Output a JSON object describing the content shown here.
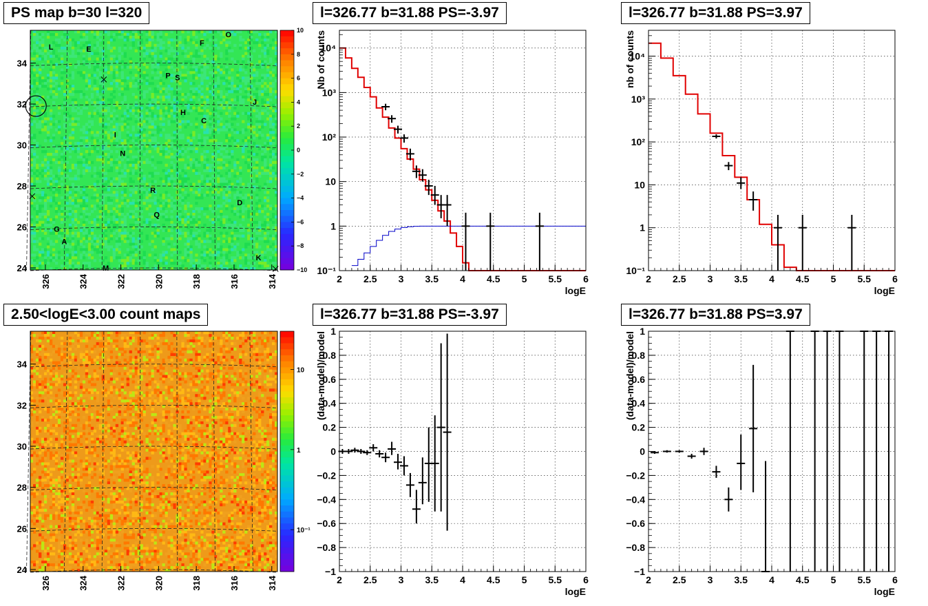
{
  "chart_data": [
    {
      "type": "heatmap",
      "title": "PS map b=30 l=320",
      "xticks": [
        "326",
        "324",
        "322",
        "320",
        "318",
        "316",
        "314"
      ],
      "xrange": [
        326.8,
        313.7
      ],
      "yticks": [
        "24",
        "26",
        "28",
        "30",
        "32",
        "34"
      ],
      "yrange": [
        23.9,
        35.6
      ],
      "colorbar_ticks": [
        "10",
        "8",
        "6",
        "4",
        "2",
        "0",
        "−2",
        "−4",
        "−6",
        "−8",
        "−10"
      ],
      "colorbar_range": [
        -10,
        10
      ],
      "colorbar_scale": "linear",
      "colormap": "rainbow",
      "base_color": "#33e655",
      "grid": "dashed",
      "markers": [
        {
          "label": "L",
          "l": 325.7,
          "b": 34.8
        },
        {
          "label": "E",
          "l": 323.7,
          "b": 34.7
        },
        {
          "label": "F",
          "l": 317.7,
          "b": 35.0
        },
        {
          "label": "O",
          "l": 316.3,
          "b": 35.4
        },
        {
          "label": "P",
          "l": 319.5,
          "b": 33.4
        },
        {
          "label": "S",
          "l": 319.0,
          "b": 33.3
        },
        {
          "label": "J",
          "l": 314.9,
          "b": 32.1
        },
        {
          "label": "H",
          "l": 318.7,
          "b": 31.6
        },
        {
          "label": "C",
          "l": 317.6,
          "b": 31.2
        },
        {
          "label": "I",
          "l": 322.3,
          "b": 30.5
        },
        {
          "label": "N",
          "l": 321.9,
          "b": 29.6
        },
        {
          "label": "R",
          "l": 320.3,
          "b": 27.8
        },
        {
          "label": "D",
          "l": 315.7,
          "b": 27.2
        },
        {
          "label": "Q",
          "l": 320.1,
          "b": 26.6
        },
        {
          "label": "G",
          "l": 325.4,
          "b": 25.9
        },
        {
          "label": "A",
          "l": 325.0,
          "b": 25.3
        },
        {
          "label": "K",
          "l": 314.7,
          "b": 24.5
        },
        {
          "label": "M",
          "l": 322.8,
          "b": 24.0
        }
      ],
      "crosses": [
        {
          "l": 322.9,
          "b": 33.2
        },
        {
          "l": 326.7,
          "b": 27.5
        },
        {
          "l": 313.8,
          "b": 23.95
        }
      ],
      "circle": {
        "l": 326.5,
        "b": 31.9
      }
    },
    {
      "type": "line",
      "title": "l=326.77 b=31.88 PS=-3.97",
      "xlabel": "logE",
      "ylabel": "Nb of counts",
      "xlim": [
        2,
        6
      ],
      "ylim": [
        0.1,
        25000
      ],
      "yscale": "log",
      "grid": true,
      "xticks": [
        2,
        2.5,
        3,
        3.5,
        4,
        4.5,
        5,
        5.5,
        6
      ],
      "yticks": [
        {
          "v": 0.1,
          "t": "10⁻¹"
        },
        {
          "v": 1,
          "t": "1"
        },
        {
          "v": 10,
          "t": "10"
        },
        {
          "v": 100,
          "t": "10²"
        },
        {
          "v": 1000,
          "t": "10³"
        },
        {
          "v": 10000,
          "t": "10⁴"
        }
      ],
      "series": [
        {
          "color": "#e00000",
          "kind": "step",
          "edges": [
            2,
            2.1,
            2.2,
            2.3,
            2.4,
            2.5,
            2.6,
            2.7,
            2.8,
            2.9,
            3.0,
            3.1,
            3.2,
            3.3,
            3.4,
            3.5,
            3.6,
            3.7,
            3.8,
            3.9,
            4.0,
            4.1,
            4.2,
            6.0
          ],
          "values": [
            10000,
            6000,
            3500,
            2200,
            1300,
            800,
            450,
            280,
            160,
            95,
            55,
            32,
            19,
            11,
            6.5,
            3.8,
            2.2,
            1.3,
            0.7,
            0.35,
            0.15,
            0.07,
            0.1
          ]
        },
        {
          "color": "#0000c8",
          "kind": "step",
          "edges": [
            2.2,
            2.3,
            2.4,
            2.5,
            2.6,
            2.7,
            2.8,
            2.9,
            3.0,
            3.1,
            3.2,
            3.3,
            3.4,
            3.5,
            6.0
          ],
          "values": [
            0.13,
            0.18,
            0.25,
            0.35,
            0.48,
            0.62,
            0.76,
            0.86,
            0.93,
            0.97,
            0.99,
            1.0,
            1.0,
            1.0
          ]
        },
        {
          "color": "#000000",
          "kind": "points",
          "points": [
            {
              "x": 2.75,
              "y": 480,
              "lo": 400,
              "hi": 560
            },
            {
              "x": 2.85,
              "y": 260,
              "lo": 210,
              "hi": 310
            },
            {
              "x": 2.95,
              "y": 150,
              "lo": 120,
              "hi": 180
            },
            {
              "x": 3.05,
              "y": 95,
              "lo": 75,
              "hi": 115
            },
            {
              "x": 3.15,
              "y": 42,
              "lo": 30,
              "hi": 55
            },
            {
              "x": 3.25,
              "y": 17,
              "lo": 12,
              "hi": 23
            },
            {
              "x": 3.35,
              "y": 14,
              "lo": 10,
              "hi": 19
            },
            {
              "x": 3.45,
              "y": 8,
              "lo": 5,
              "hi": 11
            },
            {
              "x": 3.55,
              "y": 5,
              "lo": 3,
              "hi": 8
            },
            {
              "x": 3.65,
              "y": 3,
              "lo": 1.5,
              "hi": 5
            },
            {
              "x": 3.75,
              "y": 3,
              "lo": 1,
              "hi": 5
            },
            {
              "x": 4.05,
              "y": 1,
              "lo": 0.1,
              "hi": 2
            },
            {
              "x": 4.45,
              "y": 1,
              "lo": 0.1,
              "hi": 2
            },
            {
              "x": 5.25,
              "y": 1,
              "lo": 0.1,
              "hi": 2
            }
          ]
        }
      ]
    },
    {
      "type": "line",
      "title": "l=326.77 b=31.88 PS=3.97",
      "xlabel": "logE",
      "ylabel": "nb of counts",
      "xlim": [
        2,
        6
      ],
      "ylim": [
        0.1,
        40000
      ],
      "yscale": "log",
      "grid": true,
      "xticks": [
        2,
        2.5,
        3,
        3.5,
        4,
        4.5,
        5,
        5.5,
        6
      ],
      "yticks": [
        {
          "v": 0.1,
          "t": "10⁻¹"
        },
        {
          "v": 1,
          "t": "1"
        },
        {
          "v": 10,
          "t": "10"
        },
        {
          "v": 100,
          "t": "10²"
        },
        {
          "v": 1000,
          "t": "10³"
        },
        {
          "v": 10000,
          "t": "10⁴"
        }
      ],
      "series": [
        {
          "color": "#e00000",
          "kind": "step",
          "edges": [
            2,
            2.2,
            2.4,
            2.6,
            2.8,
            3.0,
            3.2,
            3.4,
            3.6,
            3.8,
            4.0,
            4.2,
            4.4,
            6.0
          ],
          "values": [
            20000,
            9000,
            3500,
            1300,
            450,
            160,
            48,
            15,
            4.5,
            1.2,
            0.4,
            0.12,
            0.1
          ]
        },
        {
          "color": "#000000",
          "kind": "points",
          "points": [
            {
              "x": 3.1,
              "y": 135,
              "lo": 120,
              "hi": 150
            },
            {
              "x": 3.3,
              "y": 28,
              "lo": 22,
              "hi": 34
            },
            {
              "x": 3.5,
              "y": 11,
              "lo": 8,
              "hi": 15
            },
            {
              "x": 3.7,
              "y": 4.5,
              "lo": 2.5,
              "hi": 7
            },
            {
              "x": 4.1,
              "y": 1,
              "lo": 0.1,
              "hi": 2
            },
            {
              "x": 4.5,
              "y": 1,
              "lo": 0.1,
              "hi": 2
            },
            {
              "x": 5.3,
              "y": 1,
              "lo": 0.1,
              "hi": 2
            }
          ]
        }
      ]
    },
    {
      "type": "heatmap",
      "title": "2.50<logE<3.00 count maps",
      "xticks": [
        "326",
        "324",
        "322",
        "320",
        "318",
        "316",
        "314"
      ],
      "xrange": [
        326.8,
        313.7
      ],
      "yticks": [
        "24",
        "26",
        "28",
        "30",
        "32",
        "34"
      ],
      "yrange": [
        23.9,
        35.6
      ],
      "colorbar_ticks": [
        "10",
        "1",
        "10⁻¹"
      ],
      "colorbar_range": [
        0.03,
        30
      ],
      "colorbar_scale": "log",
      "colormap": "rainbow",
      "base_color": "#ee9a1a",
      "grid": "dashed"
    },
    {
      "type": "scatter",
      "title": "l=326.77 b=31.88 PS=-3.97",
      "xlabel": "logE",
      "ylabel": "(data-model)/model",
      "xlim": [
        2,
        6
      ],
      "ylim": [
        -1,
        1
      ],
      "grid": true,
      "xticks": [
        2,
        2.5,
        3,
        3.5,
        4,
        4.5,
        5,
        5.5,
        6
      ],
      "yticks": [
        -1,
        -0.8,
        -0.6,
        -0.4,
        -0.2,
        0,
        0.2,
        0.4,
        0.6,
        0.8,
        1
      ],
      "series": [
        {
          "color": "#000000",
          "kind": "points",
          "points": [
            {
              "x": 2.05,
              "y": 0.0,
              "lo": -0.02,
              "hi": 0.02
            },
            {
              "x": 2.15,
              "y": 0.0,
              "lo": -0.02,
              "hi": 0.02
            },
            {
              "x": 2.25,
              "y": 0.01,
              "lo": -0.01,
              "hi": 0.03
            },
            {
              "x": 2.35,
              "y": 0.0,
              "lo": -0.02,
              "hi": 0.02
            },
            {
              "x": 2.45,
              "y": -0.01,
              "lo": -0.03,
              "hi": 0.01
            },
            {
              "x": 2.55,
              "y": 0.03,
              "lo": 0.0,
              "hi": 0.06
            },
            {
              "x": 2.65,
              "y": -0.02,
              "lo": -0.05,
              "hi": 0.01
            },
            {
              "x": 2.75,
              "y": -0.05,
              "lo": -0.09,
              "hi": -0.01
            },
            {
              "x": 2.85,
              "y": 0.02,
              "lo": -0.03,
              "hi": 0.08
            },
            {
              "x": 2.95,
              "y": -0.09,
              "lo": -0.15,
              "hi": -0.02
            },
            {
              "x": 3.05,
              "y": -0.12,
              "lo": -0.2,
              "hi": -0.04
            },
            {
              "x": 3.15,
              "y": -0.28,
              "lo": -0.38,
              "hi": -0.18
            },
            {
              "x": 3.25,
              "y": -0.48,
              "lo": -0.6,
              "hi": -0.32
            },
            {
              "x": 3.35,
              "y": -0.26,
              "lo": -0.44,
              "hi": -0.05
            },
            {
              "x": 3.45,
              "y": -0.1,
              "lo": -0.42,
              "hi": 0.2
            },
            {
              "x": 3.55,
              "y": -0.1,
              "lo": -0.5,
              "hi": 0.3
            },
            {
              "x": 3.65,
              "y": 0.2,
              "lo": -0.5,
              "hi": 0.9
            },
            {
              "x": 3.75,
              "y": 0.16,
              "lo": -0.66,
              "hi": 0.98
            }
          ]
        }
      ]
    },
    {
      "type": "scatter",
      "title": "l=326.77 b=31.88 PS=3.97",
      "xlabel": "logE",
      "ylabel": "(data-model)/model",
      "xlim": [
        2,
        6
      ],
      "ylim": [
        -1,
        1
      ],
      "grid": true,
      "xticks": [
        2,
        2.5,
        3,
        3.5,
        4,
        4.5,
        5,
        5.5,
        6
      ],
      "yticks": [
        -1,
        -0.8,
        -0.6,
        -0.4,
        -0.2,
        0,
        0.2,
        0.4,
        0.6,
        0.8,
        1
      ],
      "series": [
        {
          "color": "#000000",
          "kind": "points",
          "points": [
            {
              "x": 2.1,
              "y": -0.01,
              "lo": -0.02,
              "hi": 0.0
            },
            {
              "x": 2.3,
              "y": 0.0,
              "lo": -0.01,
              "hi": 0.01
            },
            {
              "x": 2.5,
              "y": 0.0,
              "lo": -0.01,
              "hi": 0.01
            },
            {
              "x": 2.7,
              "y": -0.04,
              "lo": -0.06,
              "hi": -0.02
            },
            {
              "x": 2.9,
              "y": 0.0,
              "lo": -0.03,
              "hi": 0.03
            },
            {
              "x": 3.1,
              "y": -0.17,
              "lo": -0.22,
              "hi": -0.12
            },
            {
              "x": 3.3,
              "y": -0.4,
              "lo": -0.5,
              "hi": -0.3
            },
            {
              "x": 3.5,
              "y": -0.1,
              "lo": -0.32,
              "hi": 0.14
            },
            {
              "x": 3.7,
              "y": 0.19,
              "lo": -0.34,
              "hi": 0.72
            },
            {
              "x": 3.9,
              "y": -1.0,
              "lo": -1.0,
              "hi": -0.08
            },
            {
              "x": 4.3,
              "y": 1,
              "lo": -1.0,
              "hi": 1.0
            },
            {
              "x": 4.7,
              "y": 1,
              "lo": -1.0,
              "hi": 1.0
            },
            {
              "x": 4.9,
              "y": 1,
              "lo": -1.0,
              "hi": 1.0
            },
            {
              "x": 5.1,
              "y": 1,
              "lo": -1.0,
              "hi": 1.0
            },
            {
              "x": 5.5,
              "y": 1,
              "lo": -1.0,
              "hi": 1.0
            },
            {
              "x": 5.7,
              "y": 1,
              "lo": -1.0,
              "hi": 1.0
            },
            {
              "x": 5.9,
              "y": 1,
              "lo": -1.0,
              "hi": 1.0
            }
          ]
        }
      ]
    }
  ]
}
